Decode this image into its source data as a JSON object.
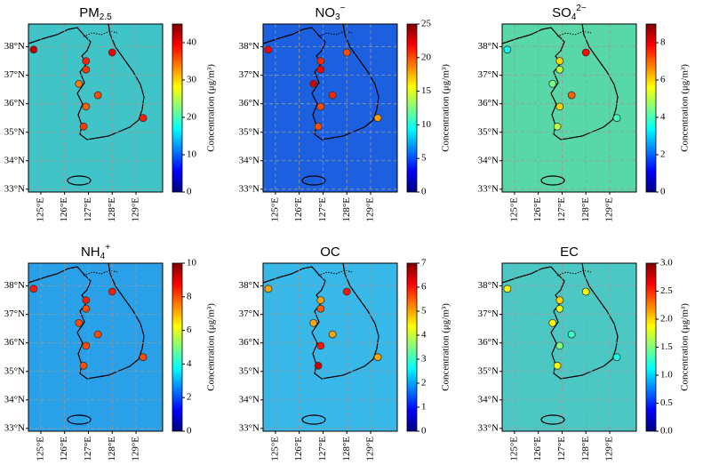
{
  "map": {
    "xlim": [
      124.48,
      130.12
    ],
    "ylim": [
      32.9,
      38.8
    ],
    "xticks": [
      {
        "value": 125,
        "label": "125°E"
      },
      {
        "value": 126,
        "label": "126°E"
      },
      {
        "value": 127,
        "label": "127°E"
      },
      {
        "value": 128,
        "label": "128°E"
      },
      {
        "value": 129,
        "label": "129°E"
      }
    ],
    "yticks": [
      {
        "value": 33,
        "label": "33°N"
      },
      {
        "value": 34,
        "label": "34°N"
      },
      {
        "value": 35,
        "label": "35°N"
      },
      {
        "value": 36,
        "label": "36°N"
      },
      {
        "value": 37,
        "label": "37°N"
      },
      {
        "value": 38,
        "label": "38°N"
      }
    ],
    "sites": {
      "lon": [
        124.7,
        128.0,
        126.9,
        126.9,
        126.6,
        127.4,
        126.9,
        129.3,
        126.8
      ],
      "lat": [
        37.9,
        37.8,
        37.5,
        37.2,
        36.7,
        36.3,
        35.9,
        35.5,
        35.2
      ]
    },
    "grid": true
  },
  "panels": [
    {
      "title": {
        "text": "PM",
        "sub": "2.5"
      },
      "background": "#40c4c8",
      "colorbar": {
        "lim": [
          0,
          45
        ],
        "ticks": [
          0,
          10,
          20,
          30,
          40
        ],
        "label": "Concentration (μg/m³)"
      },
      "site_values": [
        42,
        40,
        38,
        37,
        34,
        36,
        35,
        38,
        37
      ]
    },
    {
      "title": {
        "text": "NO",
        "sub": "3",
        "sup": "−"
      },
      "background": "#1c60e0",
      "colorbar": {
        "lim": [
          0,
          25
        ],
        "ticks": [
          0,
          5,
          10,
          15,
          20,
          25
        ],
        "label": "Concentration (μg/m³)"
      },
      "site_values": [
        22,
        20,
        21,
        22,
        23,
        21,
        20,
        18,
        20
      ]
    },
    {
      "title": {
        "text": "SO",
        "sub": "4",
        "sup": "2−"
      },
      "background": "#58d8a8",
      "colorbar": {
        "lim": [
          0,
          9
        ],
        "ticks": [
          0,
          2,
          4,
          6,
          8
        ],
        "label": "Concentration (μg/m³)"
      },
      "site_values": [
        3.5,
        7.8,
        6,
        5,
        4.5,
        7,
        6,
        4,
        5
      ]
    },
    {
      "title": {
        "text": "NH",
        "sub": "4",
        "sup": "+"
      },
      "background": "#2aa0e8",
      "colorbar": {
        "lim": [
          0,
          10
        ],
        "ticks": [
          0,
          2,
          4,
          6,
          8,
          10
        ],
        "label": "Concentration (μg/m³)"
      },
      "site_values": [
        8.5,
        8.5,
        8.5,
        8,
        8,
        8,
        8,
        8,
        8
      ]
    },
    {
      "title": {
        "text": "OC"
      },
      "background": "#38b8e8",
      "colorbar": {
        "lim": [
          0,
          7
        ],
        "ticks": [
          0,
          1,
          2,
          3,
          4,
          5,
          6,
          7
        ],
        "label": "Concentration (μg/m³)"
      },
      "site_values": [
        5,
        6,
        5,
        5.5,
        5,
        5,
        6,
        5,
        6.5
      ]
    },
    {
      "title": {
        "text": "EC"
      },
      "background": "#4cc8c4",
      "colorbar": {
        "lim": [
          0,
          3
        ],
        "ticks": [
          {
            "value": 0,
            "label": "0.0"
          },
          {
            "value": 0.5,
            "label": "0.5"
          },
          {
            "value": 1,
            "label": "1.0"
          },
          {
            "value": 1.5,
            "label": "1.5"
          },
          {
            "value": 2,
            "label": "2.0"
          },
          {
            "value": 2.5,
            "label": "2.5"
          },
          {
            "value": 3,
            "label": "3.0"
          }
        ],
        "label": "Concentration (μg/m³)"
      },
      "site_values": [
        1.9,
        1.9,
        2.0,
        1.8,
        1.9,
        1.3,
        1.5,
        1.2,
        1.9
      ]
    }
  ]
}
